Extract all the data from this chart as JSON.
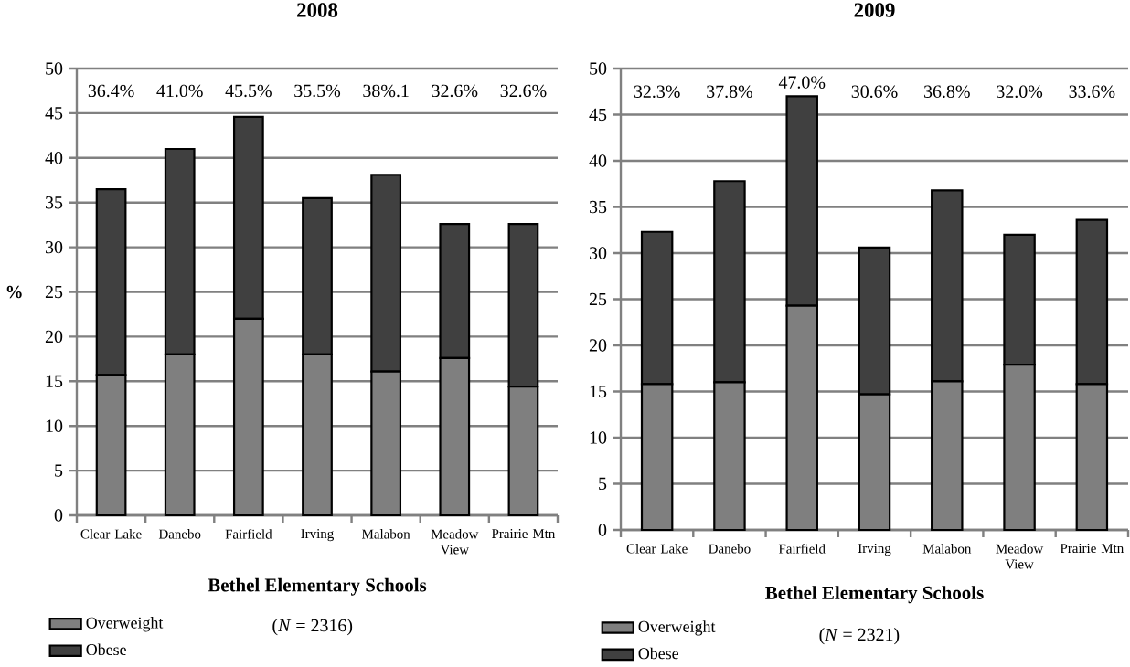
{
  "chart_data": [
    {
      "type": "bar",
      "title": "2008",
      "xlabel": "Bethel Elementary Schools",
      "ylabel": "%",
      "annotations": [
        "36.4%",
        "41.0%",
        "45.5%",
        "35.5%",
        "38%.1",
        "32.6%",
        "32.6%",
        "(*N* = 2316)"
      ],
      "categories": [
        "Clear Lake",
        "Danebo",
        "Fairfield",
        "Irving",
        "Malabon",
        "Meadow View",
        "Prairie Mtn"
      ],
      "series": [
        {
          "name": "Overweight",
          "color": "#7f7f7f",
          "values": [
            15.7,
            18,
            22,
            18,
            16.1,
            17.6,
            14.4
          ]
        },
        {
          "name": "Obese",
          "color": "#404040",
          "values": [
            20.8,
            23,
            22.6,
            17.5,
            22,
            15,
            18.2
          ]
        }
      ],
      "stacked": true,
      "ylim": [
        0,
        50
      ],
      "yticks": [
        0,
        5,
        10,
        15,
        20,
        25,
        30,
        35,
        40,
        45,
        50
      ],
      "grid": "y",
      "legend": "bottom left"
    },
    {
      "type": "bar",
      "title": "2009",
      "xlabel": "Bethel Elementary Schools",
      "annotations": [
        "32.3%",
        "37.8%",
        "47.0%",
        "30.6%",
        "36.8%",
        "32.0%",
        "33.6%",
        "(*N* = 2321)"
      ],
      "categories": [
        "Clear Lake",
        "Danebo",
        "Fairfield",
        "Irving",
        "Malabon",
        "Meadow View",
        "Prairie Mtn"
      ],
      "series": [
        {
          "name": "Overweight",
          "color": "#7f7f7f",
          "values": [
            15.8,
            16,
            24.3,
            14.7,
            16.1,
            17.9,
            15.8
          ]
        },
        {
          "name": "Obese",
          "color": "#404040",
          "values": [
            16.5,
            21.8,
            22.7,
            15.9,
            20.7,
            14.1,
            17.8
          ]
        }
      ],
      "stacked": true,
      "ylim": [
        0,
        50
      ],
      "yticks": [
        0,
        5,
        10,
        15,
        20,
        25,
        30,
        35,
        40,
        45,
        50
      ],
      "grid": "y",
      "legend": "bottom left"
    }
  ]
}
